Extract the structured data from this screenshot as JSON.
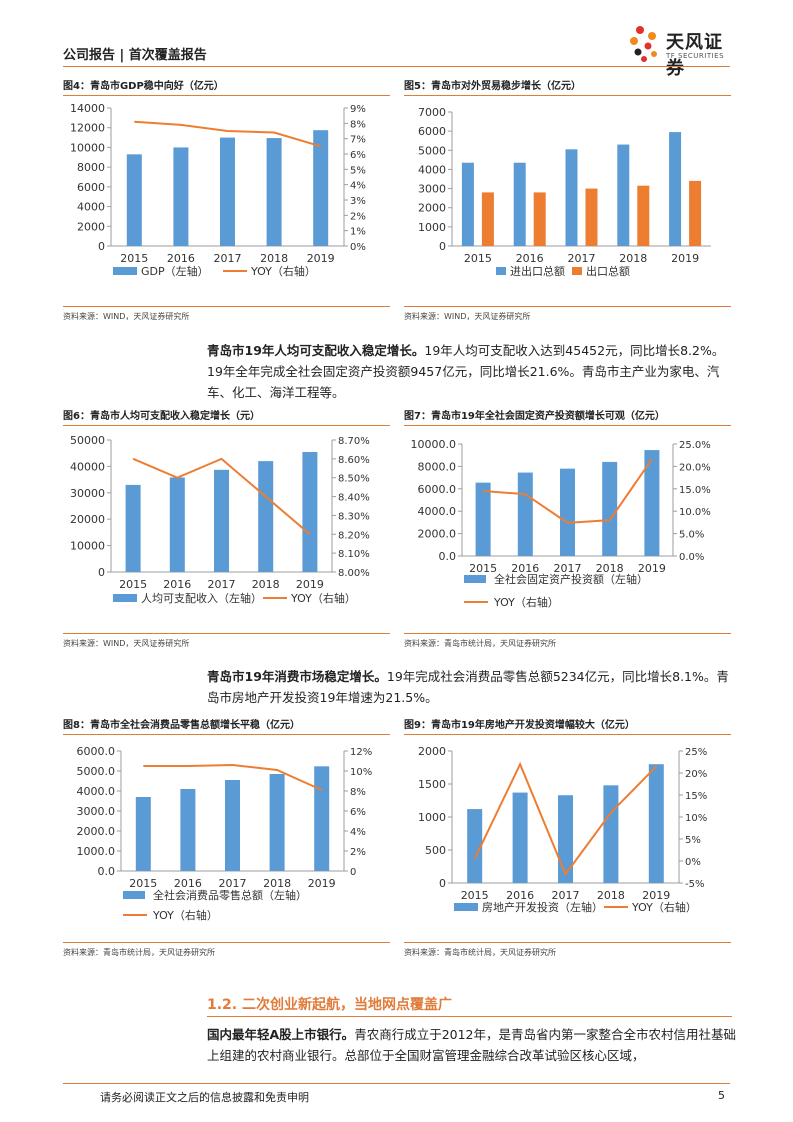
{
  "header": {
    "title": "公司报告 | 首次覆盖报告",
    "brand_cn": "天风证券",
    "brand_en": "TF SECURITIES"
  },
  "paragraphs": {
    "p1_bold": "青岛市19年人均可支配收入稳定增长。",
    "p1_text": "19年人均可支配收入达到45452元，同比增长8.2%。19年全年完成全社会固定资产投资额9457亿元，同比增长21.6%。青岛市主产业为家电、汽车、化工、海洋工程等。",
    "p2_bold": "青岛市19年消费市场稳定增长。",
    "p2_text": "19年完成社会消费品零售总额5234亿元，同比增长8.1%。青岛市房地产开发投资19年增速为21.5%。",
    "p3_bold": "国内最年轻A股上市银行。",
    "p3_text": "青农商行成立于2012年，是青岛省内第一家整合全市农村信用社基础上组建的农村商业银行。总部位于全国财富管理金融综合改革试验区核心区域，"
  },
  "section": {
    "title": "1.2. 二次创业新起航，当地网点覆盖广"
  },
  "footer": {
    "text": "请务必阅读正文之后的信息披露和免责申明",
    "page": "5"
  },
  "colors": {
    "bar_blue": "#5b9bd5",
    "bar_orange": "#ed7d31",
    "line_orange": "#ed7d31",
    "accent": "#e07b39"
  },
  "figures": [
    {
      "title": "图4：青岛市GDP稳中向好（亿元）",
      "source": "资料来源：WIND，天风证券研究所"
    },
    {
      "title": "图5：青岛市对外贸易稳步增长（亿元）",
      "source": "资料来源：WIND，天风证券研究所"
    },
    {
      "title": "图6：青岛市人均可支配收入稳定增长（元）",
      "source": "资料来源：WIND，天风证券研究所"
    },
    {
      "title": "图7：青岛市19年全社会固定资产投资额增长可观（亿元）",
      "source": "资料来源：青岛市统计局，天风证券研究所"
    },
    {
      "title": "图8：青岛市全社会消费品零售总额增长平稳（亿元）",
      "source": "资料来源：青岛市统计局，天风证券研究所"
    },
    {
      "title": "图9：青岛市19年房地产开发投资增幅较大（亿元）",
      "source": "资料来源：青岛市统计局，天风证券研究所"
    }
  ],
  "chart_data": [
    {
      "type": "bar",
      "categories": [
        "2015",
        "2016",
        "2017",
        "2018",
        "2019"
      ],
      "series": [
        {
          "name": "GDP（左轴）",
          "kind": "bar",
          "axis": "left",
          "values": [
            9300,
            10000,
            11000,
            10950,
            11750
          ]
        },
        {
          "name": "YOY（右轴）",
          "kind": "line",
          "axis": "right",
          "values": [
            8.1,
            7.9,
            7.5,
            7.4,
            6.5
          ]
        }
      ],
      "left_ticks": [
        "0",
        "2000",
        "4000",
        "6000",
        "8000",
        "10000",
        "12000",
        "14000"
      ],
      "ylim_left": [
        0,
        14000
      ],
      "right_ticks": [
        "0%",
        "1%",
        "2%",
        "3%",
        "4%",
        "5%",
        "6%",
        "7%",
        "8%",
        "9%"
      ],
      "ylim_right": [
        0,
        9
      ],
      "legend": "bottom"
    },
    {
      "type": "bar",
      "categories": [
        "2015",
        "2016",
        "2017",
        "2018",
        "2019"
      ],
      "series": [
        {
          "name": "进出口总额",
          "kind": "bar",
          "axis": "left",
          "values": [
            4350,
            4350,
            5050,
            5300,
            5950
          ]
        },
        {
          "name": "出口总额",
          "kind": "bar",
          "axis": "left",
          "values": [
            2800,
            2800,
            3000,
            3150,
            3400
          ]
        }
      ],
      "left_ticks": [
        "0",
        "1000",
        "2000",
        "3000",
        "4000",
        "5000",
        "6000",
        "7000"
      ],
      "ylim_left": [
        0,
        7000
      ],
      "legend": "bottom"
    },
    {
      "type": "bar",
      "categories": [
        "2015",
        "2016",
        "2017",
        "2018",
        "2019"
      ],
      "series": [
        {
          "name": "人均可支配收入（左轴）",
          "kind": "bar",
          "axis": "left",
          "values": [
            33000,
            35800,
            38700,
            42000,
            45452
          ]
        },
        {
          "name": "YOY（右轴）",
          "kind": "line",
          "axis": "right",
          "values": [
            8.6,
            8.5,
            8.6,
            8.4,
            8.2
          ]
        }
      ],
      "left_ticks": [
        "0",
        "10000",
        "20000",
        "30000",
        "40000",
        "50000"
      ],
      "ylim_left": [
        0,
        50000
      ],
      "right_ticks": [
        "8.00%",
        "8.10%",
        "8.20%",
        "8.30%",
        "8.40%",
        "8.50%",
        "8.60%",
        "8.70%"
      ],
      "ylim_right": [
        8.0,
        8.7
      ],
      "legend": "bottom"
    },
    {
      "type": "bar",
      "categories": [
        "2015",
        "2016",
        "2017",
        "2018",
        "2019"
      ],
      "series": [
        {
          "name": "全社会固定资产投资额（左轴）",
          "kind": "bar",
          "axis": "left",
          "values": [
            6550,
            7450,
            7800,
            8400,
            9457
          ]
        },
        {
          "name": "YOY（右轴）",
          "kind": "line",
          "axis": "right",
          "values": [
            14.5,
            13.8,
            7.4,
            8.0,
            21.6
          ]
        }
      ],
      "left_ticks": [
        "0.0",
        "2000.0",
        "4000.0",
        "6000.0",
        "8000.0",
        "10000.0"
      ],
      "ylim_left": [
        0,
        10000
      ],
      "right_ticks": [
        "0.0%",
        "5.0%",
        "10.0%",
        "15.0%",
        "20.0%",
        "25.0%"
      ],
      "ylim_right": [
        0,
        25
      ],
      "legend": "bottom"
    },
    {
      "type": "bar",
      "categories": [
        "2015",
        "2016",
        "2017",
        "2018",
        "2019"
      ],
      "series": [
        {
          "name": "全社会消费品零售总额（左轴）",
          "kind": "bar",
          "axis": "left",
          "values": [
            3700,
            4100,
            4550,
            4850,
            5234
          ]
        },
        {
          "name": "YOY（右轴）",
          "kind": "line",
          "axis": "right",
          "values": [
            10.5,
            10.5,
            10.6,
            10.1,
            8.1
          ]
        }
      ],
      "left_ticks": [
        "0.0",
        "1000.0",
        "2000.0",
        "3000.0",
        "4000.0",
        "5000.0",
        "6000.0"
      ],
      "ylim_left": [
        0,
        6000
      ],
      "right_ticks": [
        "0",
        "2%",
        "4%",
        "6%",
        "8%",
        "10%",
        "12%"
      ],
      "ylim_right": [
        0,
        12
      ],
      "legend": "bottom"
    },
    {
      "type": "bar",
      "categories": [
        "2015",
        "2016",
        "2017",
        "2018",
        "2019"
      ],
      "series": [
        {
          "name": "房地产开发投资（左轴）",
          "kind": "bar",
          "axis": "left",
          "values": [
            1120,
            1370,
            1330,
            1480,
            1800
          ]
        },
        {
          "name": "YOY（右轴）",
          "kind": "line",
          "axis": "right",
          "values": [
            0.5,
            22.0,
            -3.0,
            11.0,
            21.5
          ]
        }
      ],
      "left_ticks": [
        "0",
        "500",
        "1000",
        "1500",
        "2000"
      ],
      "ylim_left": [
        0,
        2000
      ],
      "right_ticks": [
        "-5%",
        "0%",
        "5%",
        "10%",
        "15%",
        "20%",
        "25%"
      ],
      "ylim_right": [
        -5,
        25
      ],
      "legend": "bottom"
    }
  ]
}
